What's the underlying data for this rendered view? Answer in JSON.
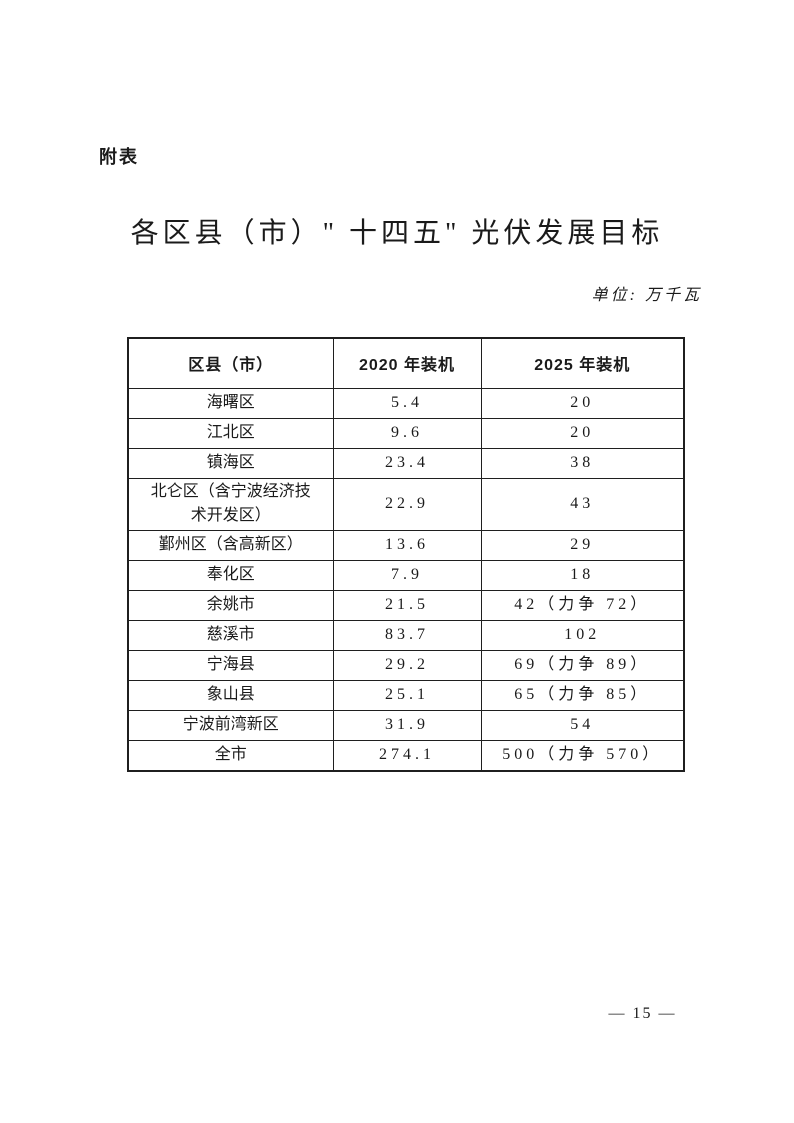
{
  "page": {
    "appendix_label": "附表",
    "title": "各区县（市）\" 十四五\" 光伏发展目标",
    "unit_note": "单位: 万千瓦",
    "page_number": "— 15 —"
  },
  "table": {
    "headers": [
      "区县（市）",
      "2020 年装机",
      "2025 年装机"
    ],
    "rows": [
      {
        "region": "海曙区",
        "y2020": "5.4",
        "y2025": "20"
      },
      {
        "region": "江北区",
        "y2020": "9.6",
        "y2025": "20"
      },
      {
        "region": "镇海区",
        "y2020": "23.4",
        "y2025": "38"
      },
      {
        "region": "北仑区（含宁波经济技术开发区）",
        "y2020": "22.9",
        "y2025": "43"
      },
      {
        "region": "鄞州区（含高新区）",
        "y2020": "13.6",
        "y2025": "29"
      },
      {
        "region": "奉化区",
        "y2020": "7.9",
        "y2025": "18"
      },
      {
        "region": "余姚市",
        "y2020": "21.5",
        "y2025": "42（力争 72）"
      },
      {
        "region": "慈溪市",
        "y2020": "83.7",
        "y2025": "102"
      },
      {
        "region": "宁海县",
        "y2020": "29.2",
        "y2025": "69（力争 89）"
      },
      {
        "region": "象山县",
        "y2020": "25.1",
        "y2025": "65（力争 85）"
      },
      {
        "region": "宁波前湾新区",
        "y2020": "31.9",
        "y2025": "54"
      },
      {
        "region": "全市",
        "y2020": "274.1",
        "y2025": "500（力争 570）"
      }
    ]
  }
}
